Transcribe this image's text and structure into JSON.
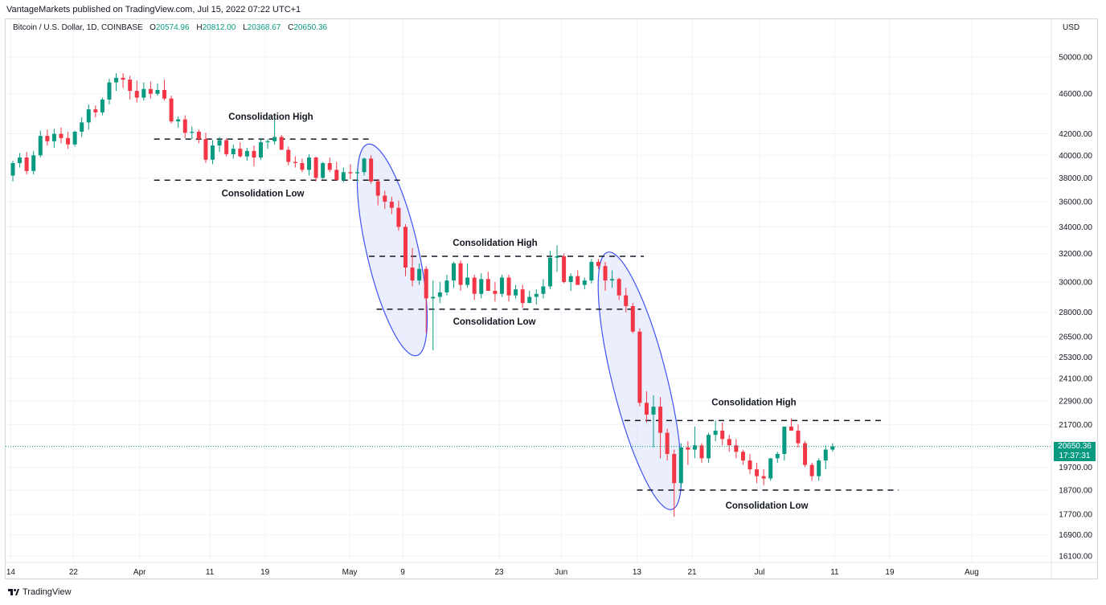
{
  "header": {
    "publisher": "VantageMarkets published on TradingView.com, Jul 15, 2022 07:22 UTC+1",
    "symbol": "Bitcoin / U.S. Dollar, 1D, COINBASE",
    "o_label": "O",
    "o_value": "20574.96",
    "h_label": "H",
    "h_value": "20812.00",
    "l_label": "L",
    "l_value": "20368.67",
    "c_label": "C",
    "c_value": "20650.36",
    "currency": "USD"
  },
  "price_tag": {
    "price": "20650.36",
    "countdown": "17:37:31"
  },
  "footer": {
    "brand": "TradingView"
  },
  "colors": {
    "up": "#089981",
    "down": "#f23645",
    "ellipse": "#3f51f5",
    "ellipse_fill": "#dbe1fb"
  },
  "chart_data": {
    "type": "candlestick",
    "y_scale": "log",
    "y_ticks": [
      "50000.00",
      "46000.00",
      "42000.00",
      "40000.00",
      "38000.00",
      "36000.00",
      "34000.00",
      "32000.00",
      "30000.00",
      "28000.00",
      "26500.00",
      "25300.00",
      "24100.00",
      "22900.00",
      "21700.00",
      "20650.36",
      "19700.00",
      "18700.00",
      "17700.00",
      "16900.00",
      "16100.00"
    ],
    "x_ticks": [
      "14",
      "22",
      "Apr",
      "11",
      "19",
      "May",
      "9",
      "23",
      "Jun",
      "13",
      "21",
      "Jul",
      "11",
      "19",
      "Aug"
    ],
    "last_price": 20650.36,
    "candles": [
      [
        38200,
        39500,
        37700,
        39300
      ],
      [
        39300,
        40200,
        38900,
        39800
      ],
      [
        39800,
        40300,
        38300,
        38600
      ],
      [
        38600,
        40400,
        38300,
        40000
      ],
      [
        40000,
        42300,
        39800,
        41800
      ],
      [
        41800,
        42400,
        40900,
        41300
      ],
      [
        41300,
        42500,
        40700,
        42000
      ],
      [
        42000,
        42600,
        41100,
        41600
      ],
      [
        41600,
        42200,
        40600,
        41000
      ],
      [
        41000,
        42300,
        40800,
        42200
      ],
      [
        42200,
        43600,
        41700,
        43100
      ],
      [
        43100,
        44900,
        42400,
        44400
      ],
      [
        44400,
        44800,
        43600,
        44100
      ],
      [
        44100,
        45600,
        43800,
        45400
      ],
      [
        45400,
        47600,
        44900,
        47200
      ],
      [
        47200,
        48200,
        46300,
        47700
      ],
      [
        47700,
        48200,
        46600,
        47500
      ],
      [
        47500,
        47900,
        45400,
        46300
      ],
      [
        46300,
        47400,
        45100,
        45600
      ],
      [
        45600,
        47200,
        45300,
        46500
      ],
      [
        46500,
        47300,
        45500,
        46000
      ],
      [
        46000,
        47100,
        45800,
        46400
      ],
      [
        46400,
        47500,
        45300,
        45500
      ],
      [
        45500,
        45800,
        43000,
        43200
      ],
      [
        43200,
        43700,
        42600,
        43400
      ],
      [
        43400,
        43800,
        41600,
        42100
      ],
      [
        42100,
        42700,
        41500,
        42200
      ],
      [
        42200,
        42400,
        41100,
        41500
      ],
      [
        41500,
        42100,
        39300,
        39600
      ],
      [
        39600,
        41400,
        39200,
        40900
      ],
      [
        40900,
        41700,
        40300,
        41400
      ],
      [
        41400,
        41600,
        39900,
        40100
      ],
      [
        40100,
        41000,
        39700,
        40600
      ],
      [
        40600,
        41200,
        39800,
        39900
      ],
      [
        39900,
        40700,
        39500,
        40400
      ],
      [
        40400,
        40900,
        39000,
        39800
      ],
      [
        39800,
        41600,
        39600,
        41200
      ],
      [
        41200,
        41500,
        40600,
        41300
      ],
      [
        41300,
        43400,
        41000,
        41700
      ],
      [
        41700,
        41900,
        40500,
        40500
      ],
      [
        40500,
        40800,
        39100,
        39400
      ],
      [
        39400,
        39900,
        38900,
        39300
      ],
      [
        39300,
        39700,
        38500,
        38700
      ],
      [
        38700,
        40100,
        38200,
        39800
      ],
      [
        39800,
        39900,
        37700,
        38000
      ],
      [
        38000,
        39400,
        37900,
        39300
      ],
      [
        39300,
        39800,
        38500,
        38700
      ],
      [
        38700,
        39400,
        37800,
        37800
      ],
      [
        37800,
        38900,
        37600,
        38500
      ],
      [
        38500,
        39200,
        37900,
        38400
      ],
      [
        38400,
        38800,
        37700,
        38500
      ],
      [
        38500,
        39800,
        38200,
        39700
      ],
      [
        39700,
        40000,
        37500,
        37700
      ],
      [
        37700,
        37900,
        35700,
        36500
      ],
      [
        36500,
        36900,
        35400,
        36000
      ],
      [
        36000,
        36400,
        35000,
        35500
      ],
      [
        35500,
        36100,
        33700,
        34000
      ],
      [
        34000,
        34200,
        30400,
        31000
      ],
      [
        31000,
        32400,
        29700,
        30100
      ],
      [
        30100,
        31300,
        29800,
        30900
      ],
      [
        30900,
        31100,
        26700,
        28900
      ],
      [
        28900,
        30100,
        25700,
        29000
      ],
      [
        29000,
        30000,
        28600,
        29300
      ],
      [
        29300,
        30500,
        29100,
        30100
      ],
      [
        30100,
        31400,
        29600,
        31300
      ],
      [
        31300,
        31500,
        29400,
        29800
      ],
      [
        29800,
        31300,
        29600,
        30300
      ],
      [
        30300,
        30500,
        28800,
        29200
      ],
      [
        29200,
        30600,
        28900,
        30200
      ],
      [
        30200,
        30700,
        29700,
        29400
      ],
      [
        29400,
        30000,
        28700,
        29200
      ],
      [
        29200,
        30500,
        29000,
        30300
      ],
      [
        30300,
        30500,
        28700,
        29100
      ],
      [
        29100,
        29800,
        28900,
        29500
      ],
      [
        29500,
        29800,
        28300,
        28600
      ],
      [
        28600,
        29400,
        28600,
        29000
      ],
      [
        29000,
        29500,
        28500,
        29200
      ],
      [
        29200,
        30200,
        28900,
        29700
      ],
      [
        29700,
        32200,
        29500,
        31700
      ],
      [
        31700,
        32600,
        30700,
        31800
      ],
      [
        31800,
        32000,
        29900,
        30000
      ],
      [
        30000,
        30600,
        29400,
        30400
      ],
      [
        30400,
        30800,
        29800,
        29800
      ],
      [
        29800,
        30300,
        29500,
        30100
      ],
      [
        30100,
        31600,
        29900,
        31400
      ],
      [
        31400,
        31600,
        30900,
        31100
      ],
      [
        31100,
        31400,
        29400,
        30100
      ],
      [
        30100,
        30800,
        29600,
        30200
      ],
      [
        30200,
        30300,
        28800,
        29100
      ],
      [
        29100,
        29600,
        28000,
        28400
      ],
      [
        28400,
        28600,
        26700,
        26800
      ],
      [
        26800,
        27000,
        22600,
        22800
      ],
      [
        22800,
        23400,
        21800,
        22200
      ],
      [
        22200,
        23200,
        20600,
        22600
      ],
      [
        22600,
        23100,
        20100,
        21300
      ],
      [
        21300,
        21500,
        20000,
        20300
      ],
      [
        20300,
        20500,
        17600,
        19000
      ],
      [
        19000,
        20800,
        18800,
        20600
      ],
      [
        20600,
        20900,
        19800,
        20500
      ],
      [
        20500,
        21600,
        20100,
        20700
      ],
      [
        20700,
        20800,
        19900,
        20100
      ],
      [
        20100,
        21300,
        19900,
        21200
      ],
      [
        21200,
        21900,
        20900,
        21400
      ],
      [
        21400,
        21800,
        20700,
        21000
      ],
      [
        21000,
        21200,
        20400,
        20700
      ],
      [
        20700,
        21000,
        20100,
        20400
      ],
      [
        20400,
        20500,
        19800,
        20000
      ],
      [
        20000,
        20300,
        19400,
        19600
      ],
      [
        19600,
        19900,
        19000,
        19300
      ],
      [
        19300,
        19600,
        18900,
        19200
      ],
      [
        19200,
        20100,
        19100,
        20100
      ],
      [
        20100,
        20400,
        19900,
        20300
      ],
      [
        20300,
        21600,
        20000,
        21600
      ],
      [
        21600,
        22000,
        21400,
        21400
      ],
      [
        21400,
        21700,
        20600,
        20800
      ],
      [
        20800,
        20900,
        19700,
        19800
      ],
      [
        19800,
        19900,
        19100,
        19300
      ],
      [
        19300,
        20100,
        19100,
        20000
      ],
      [
        20000,
        20700,
        19600,
        20500
      ],
      [
        20500,
        20800,
        20400,
        20650.36
      ]
    ],
    "annotations": [
      {
        "text": "Consolidation High",
        "type": "resistance",
        "price": 41500
      },
      {
        "text": "Consolidation Low",
        "type": "support",
        "price": 37800
      },
      {
        "text": "Consolidation High",
        "type": "resistance",
        "price": 31800
      },
      {
        "text": "Consolidation Low",
        "type": "support",
        "price": 28200
      },
      {
        "text": "Consolidation High",
        "type": "resistance",
        "price": 21900
      },
      {
        "text": "Consolidation Low",
        "type": "support",
        "price": 18700
      }
    ]
  }
}
